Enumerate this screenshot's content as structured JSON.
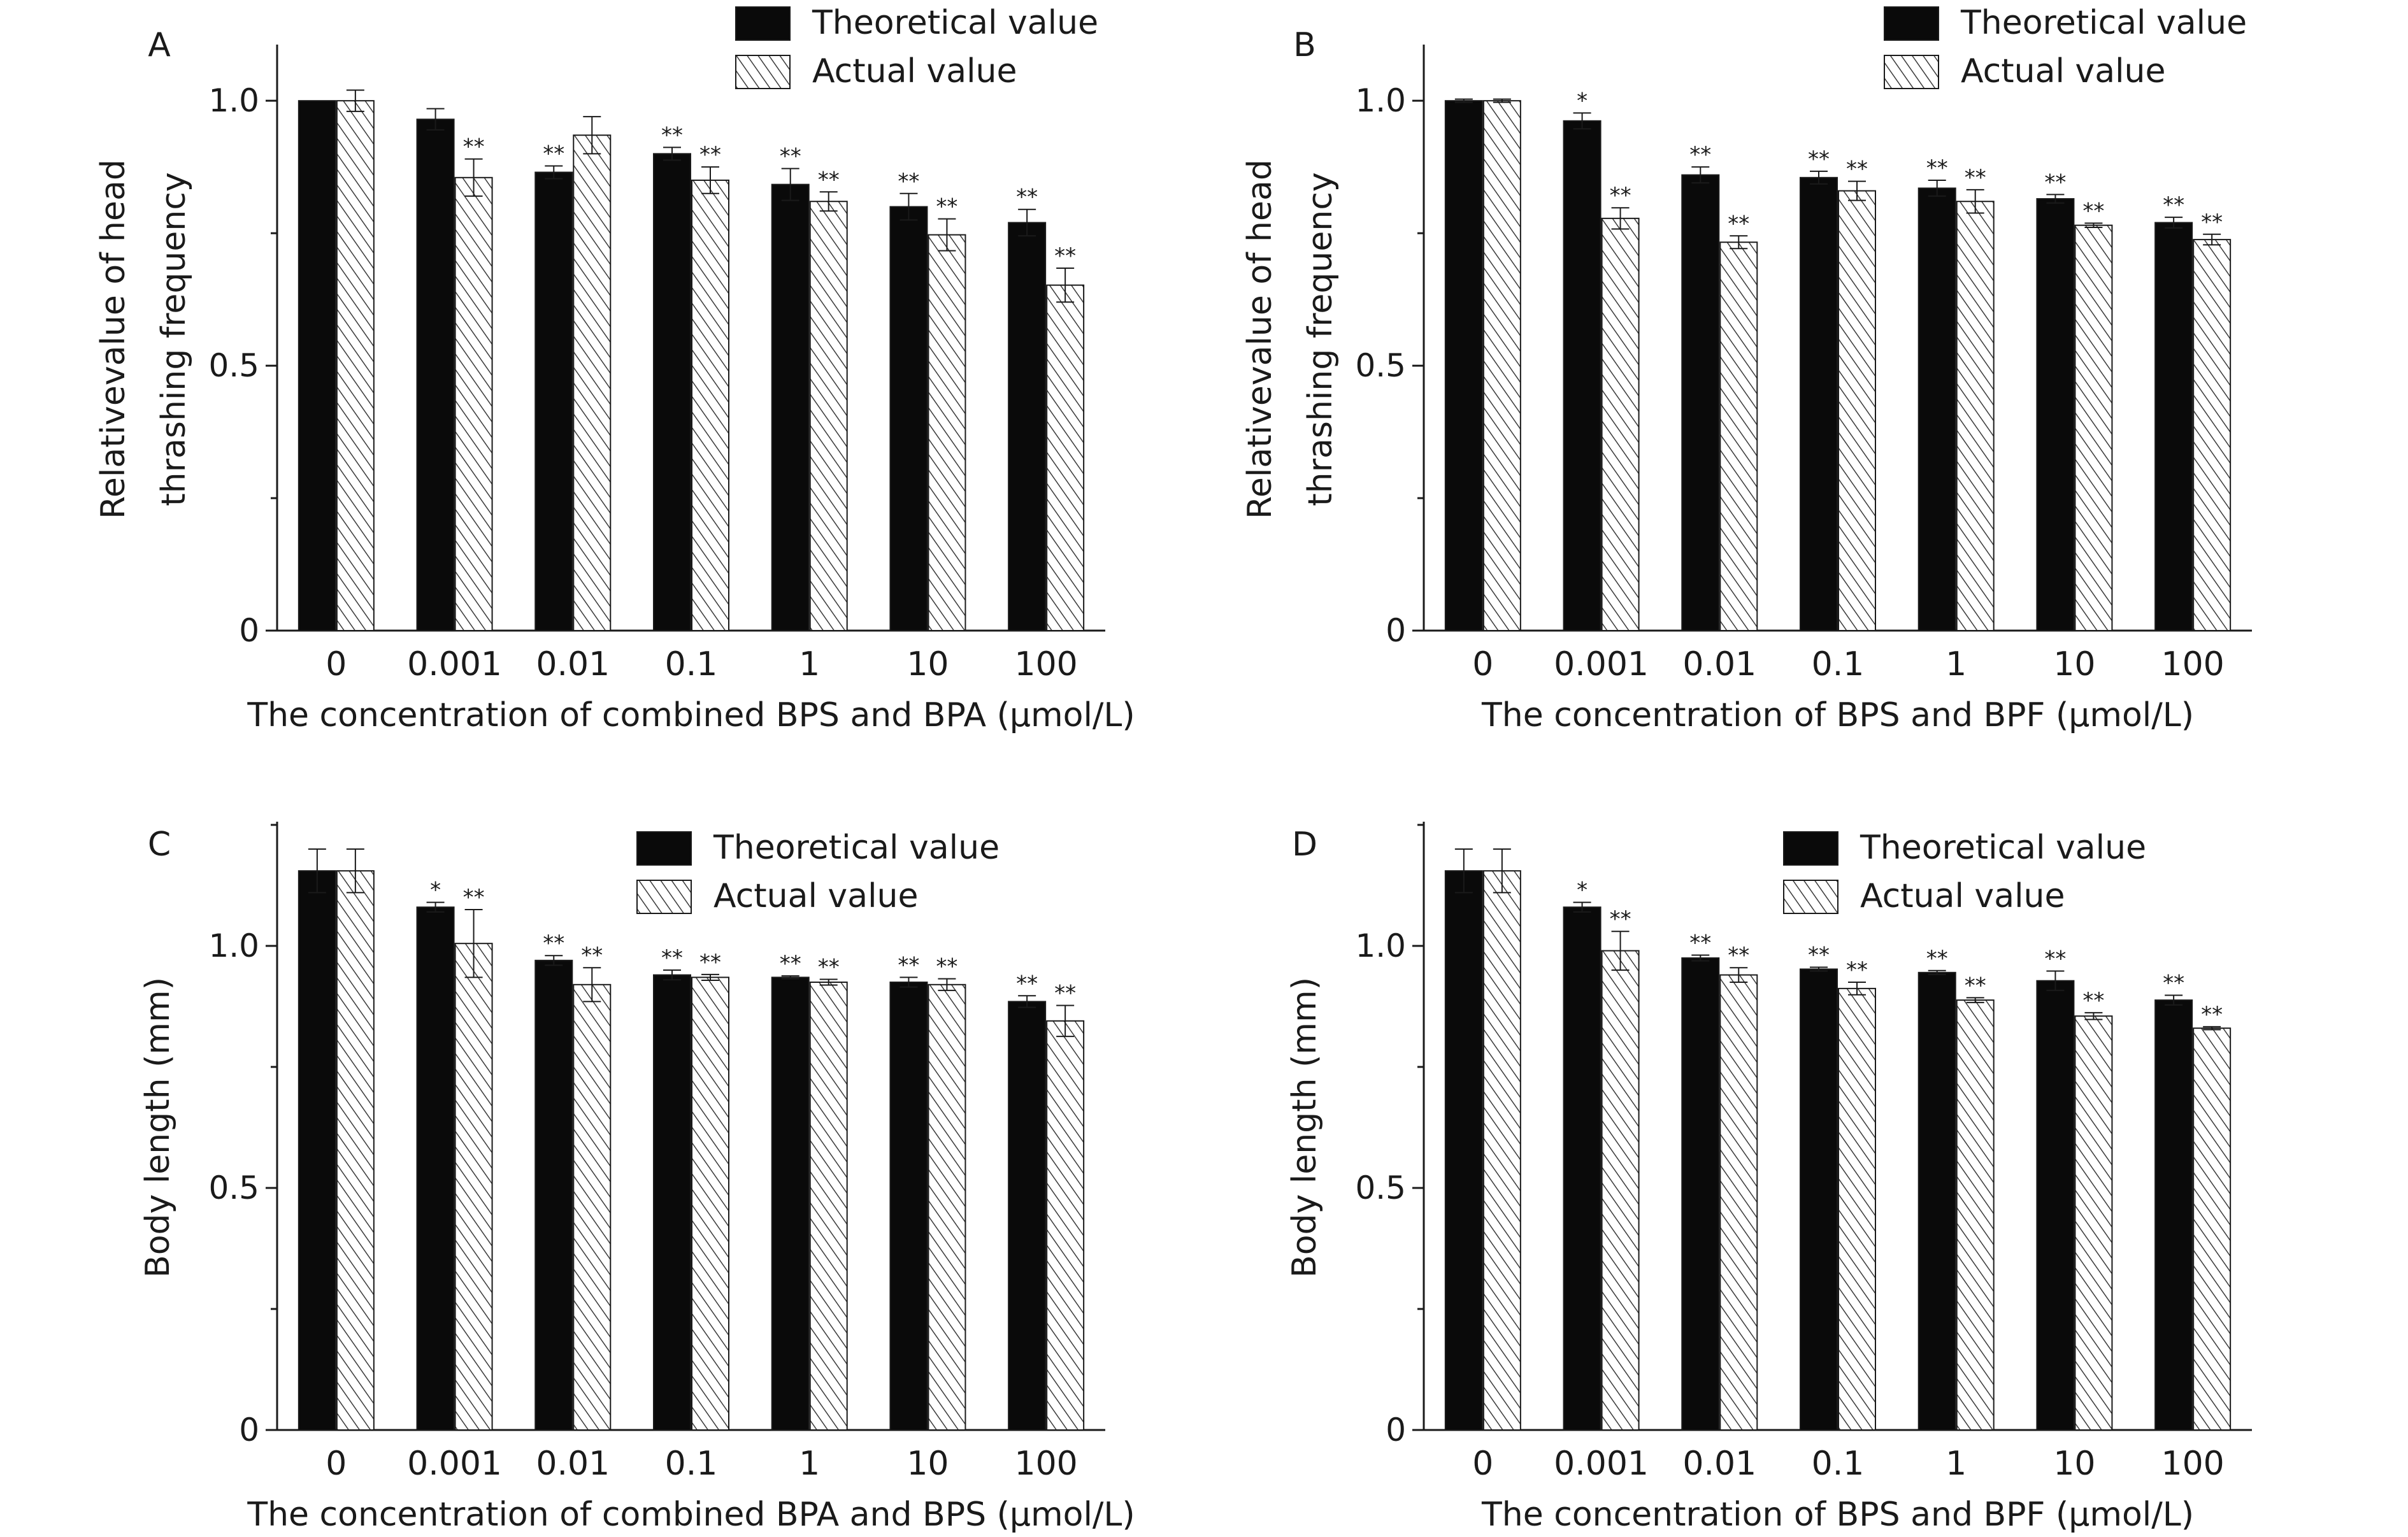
{
  "colors": {
    "theoretical": "#0a0a0a",
    "actual_fill": "#ffffff",
    "hatch": "#3a3a3a",
    "axis": "#1a1a1a"
  },
  "legend_labels": {
    "theoretical": "Theoretical value",
    "actual": "Actual value"
  },
  "chart_data": [
    {
      "type": "bar",
      "panel": "A",
      "categories": [
        "0",
        "0.001",
        "0.01",
        "0.1",
        "1",
        "10",
        "100"
      ],
      "xlabel": "The concentration of combined BPS and BPA (µmol/L)",
      "ylabel": [
        "Relativevalue of head",
        "thrashing frequency"
      ],
      "ylim": [
        0,
        1.1
      ],
      "yticks": [
        {
          "v": 0,
          "label": "0"
        },
        {
          "v": 0.5,
          "label": "0.5"
        },
        {
          "v": 1.0,
          "label": "1.0"
        }
      ],
      "legend_position": "top-right",
      "series": [
        {
          "name": "Theoretical value",
          "values": [
            1.0,
            0.965,
            0.865,
            0.9,
            0.842,
            0.8,
            0.77
          ],
          "errors": [
            0.0,
            0.02,
            0.012,
            0.012,
            0.03,
            0.025,
            0.025
          ],
          "sig": [
            "",
            "",
            "**",
            "**",
            "**",
            "**",
            "**"
          ]
        },
        {
          "name": "Actual value",
          "values": [
            1.0,
            0.855,
            0.935,
            0.85,
            0.81,
            0.747,
            0.652
          ],
          "errors": [
            0.02,
            0.035,
            0.035,
            0.025,
            0.018,
            0.03,
            0.032
          ],
          "sig": [
            "",
            "**",
            "",
            "**",
            "**",
            "**",
            "**"
          ]
        }
      ]
    },
    {
      "type": "bar",
      "panel": "B",
      "categories": [
        "0",
        "0.001",
        "0.01",
        "0.1",
        "1",
        "10",
        "100"
      ],
      "xlabel": "The concentration of BPS and BPF (µmol/L)",
      "ylabel": [
        "Relativevalue of head",
        "thrashing frequency"
      ],
      "ylim": [
        0,
        1.1
      ],
      "yticks": [
        {
          "v": 0,
          "label": "0"
        },
        {
          "v": 0.5,
          "label": "0.5"
        },
        {
          "v": 1.0,
          "label": "1.0"
        }
      ],
      "legend_position": "top-right",
      "series": [
        {
          "name": "Theoretical value",
          "values": [
            1.0,
            0.962,
            0.86,
            0.855,
            0.835,
            0.815,
            0.77
          ],
          "errors": [
            0.003,
            0.015,
            0.015,
            0.012,
            0.015,
            0.008,
            0.01
          ],
          "sig": [
            "",
            "*",
            "**",
            "**",
            "**",
            "**",
            "**"
          ]
        },
        {
          "name": "Actual value",
          "values": [
            1.0,
            0.778,
            0.733,
            0.83,
            0.81,
            0.765,
            0.738
          ],
          "errors": [
            0.003,
            0.02,
            0.012,
            0.018,
            0.022,
            0.004,
            0.01
          ],
          "sig": [
            "",
            "**",
            "**",
            "**",
            "**",
            "**",
            "**"
          ]
        }
      ]
    },
    {
      "type": "bar",
      "panel": "C",
      "categories": [
        "0",
        "0.001",
        "0.01",
        "0.1",
        "1",
        "10",
        "100"
      ],
      "xlabel": "The concentration of combined BPA and BPS (µmol/L)",
      "ylabel": [
        "Body length (mm)"
      ],
      "ylim": [
        0,
        1.25
      ],
      "yticks": [
        {
          "v": 0,
          "label": "0"
        },
        {
          "v": 0.5,
          "label": "0.5"
        },
        {
          "v": 1.0,
          "label": "1.0"
        }
      ],
      "legend_position": "top-right",
      "series": [
        {
          "name": "Theoretical value",
          "values": [
            1.155,
            1.08,
            0.97,
            0.94,
            0.935,
            0.925,
            0.885
          ],
          "errors": [
            0.045,
            0.01,
            0.01,
            0.01,
            0.003,
            0.01,
            0.012
          ],
          "sig": [
            "",
            "*",
            "**",
            "**",
            "**",
            "**",
            "**"
          ]
        },
        {
          "name": "Actual value",
          "values": [
            1.155,
            1.005,
            0.92,
            0.935,
            0.925,
            0.92,
            0.845
          ],
          "errors": [
            0.045,
            0.07,
            0.035,
            0.006,
            0.006,
            0.012,
            0.032
          ],
          "sig": [
            "",
            "**",
            "**",
            "**",
            "**",
            "**",
            "**"
          ]
        }
      ]
    },
    {
      "type": "bar",
      "panel": "D",
      "categories": [
        "0",
        "0.001",
        "0.01",
        "0.1",
        "1",
        "10",
        "100"
      ],
      "xlabel": "The concentration of BPS and BPF (µmol/L)",
      "ylabel": [
        "Body length (mm)"
      ],
      "ylim": [
        0,
        1.25
      ],
      "yticks": [
        {
          "v": 0,
          "label": "0"
        },
        {
          "v": 0.5,
          "label": "0.5"
        },
        {
          "v": 1.0,
          "label": "1.0"
        }
      ],
      "legend_position": "top-right",
      "series": [
        {
          "name": "Theoretical value",
          "values": [
            1.155,
            1.08,
            0.975,
            0.952,
            0.945,
            0.928,
            0.888
          ],
          "errors": [
            0.045,
            0.01,
            0.006,
            0.004,
            0.004,
            0.02,
            0.01
          ],
          "sig": [
            "",
            "*",
            "**",
            "**",
            "**",
            "**",
            "**"
          ]
        },
        {
          "name": "Actual value",
          "values": [
            1.155,
            0.99,
            0.94,
            0.912,
            0.888,
            0.855,
            0.83
          ],
          "errors": [
            0.045,
            0.04,
            0.015,
            0.013,
            0.005,
            0.007,
            0.003
          ],
          "sig": [
            "",
            "**",
            "**",
            "**",
            "**",
            "**",
            "**"
          ]
        }
      ]
    }
  ]
}
